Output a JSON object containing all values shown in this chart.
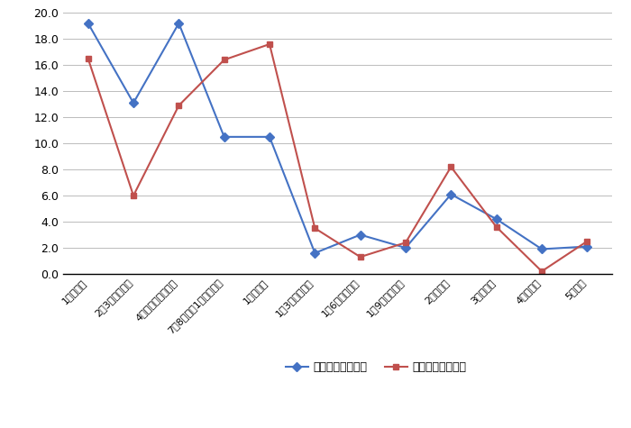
{
  "categories": [
    "1ヶ月以下",
    "2〜3ヶ月くらい",
    "4ヶ月〜半年くらい",
    "7・8ヶ月〜1年弱くらい",
    "1年くらい",
    "1年3ヶ月くらい",
    "1年6ヶ月くらい",
    "1年9ヶ月くらい",
    "2年くらい",
    "3年くらい",
    "4年くらい",
    "5年以上"
  ],
  "series": [
    {
      "label": "不妊治療・子あり",
      "values": [
        19.2,
        13.1,
        19.2,
        10.5,
        10.5,
        1.6,
        3.0,
        2.0,
        6.1,
        4.2,
        1.9,
        2.1
      ],
      "color": "#4472C4",
      "marker": "D"
    },
    {
      "label": "不妊治療・子なし",
      "values": [
        16.5,
        6.0,
        12.9,
        16.4,
        17.6,
        3.5,
        1.3,
        2.4,
        8.2,
        3.6,
        0.2,
        2.5
      ],
      "color": "#C0504D",
      "marker": "s"
    }
  ],
  "ylim": [
    0.0,
    20.0
  ],
  "yticks": [
    0.0,
    2.0,
    4.0,
    6.0,
    8.0,
    10.0,
    12.0,
    14.0,
    16.0,
    18.0,
    20.0
  ],
  "background_color": "#FFFFFF",
  "grid_color": "#BBBBBB",
  "figsize": [
    7.0,
    4.75
  ],
  "dpi": 100
}
